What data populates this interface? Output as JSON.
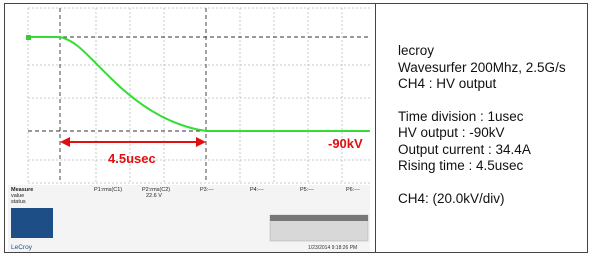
{
  "scope": {
    "annotations": {
      "duration": "4.5usec",
      "voltage": "-90kV"
    },
    "measure_panel": {
      "row_labels": [
        "Measure",
        "value",
        "status"
      ],
      "columns": [
        "P1:rms(C1)",
        "P2:rms(C2)",
        "P3:---",
        "P4:---",
        "P5:---",
        "P6:---"
      ],
      "p2_value": "22.6 V"
    },
    "brand": "LeCroy",
    "timestamp": "1/23/2014 9:18:26 PM"
  },
  "notes": [
    [
      "lecroy",
      "Wavesurfer 200Mhz, 2.5G/s",
      "CH4 : HV output"
    ],
    [
      "Time division : 1usec",
      "HV output : -90kV",
      "Output current :  34.4A",
      "Rising time : 4.5usec"
    ],
    [
      "CH4: (20.0kV/div)"
    ]
  ]
}
